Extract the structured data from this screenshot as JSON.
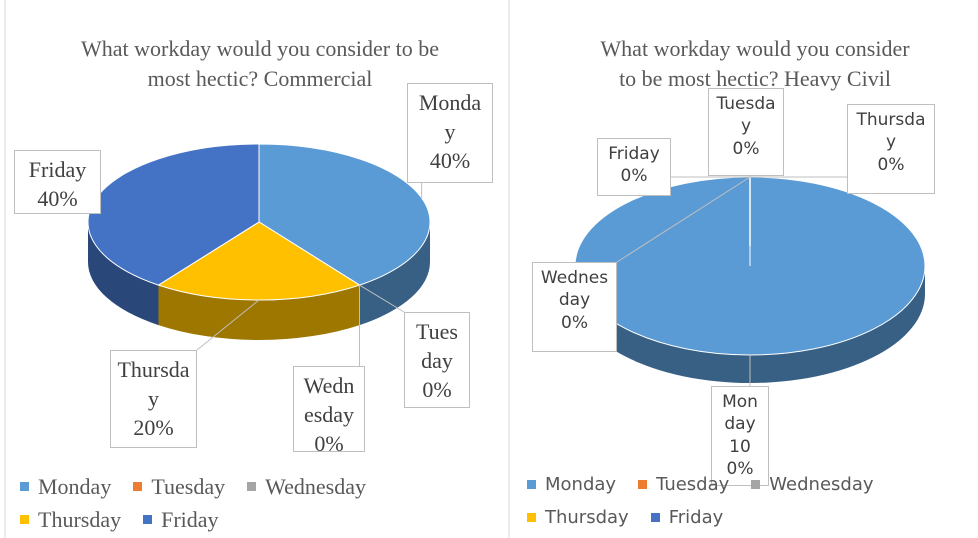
{
  "chart_data": [
    {
      "type": "pie",
      "title": "What workday would you consider to be most hectic? Commercial",
      "categories": [
        "Monday",
        "Tuesday",
        "Wednesday",
        "Thursday",
        "Friday"
      ],
      "values": [
        40,
        0,
        0,
        20,
        40
      ],
      "value_labels": [
        "40%",
        "0%",
        "0%",
        "20%",
        "40%"
      ],
      "colors": [
        "#5b9bd5",
        "#ed7d31",
        "#a5a5a5",
        "#ffc000",
        "#4472c4"
      ],
      "legend": "bottom"
    },
    {
      "type": "pie",
      "title": "What workday would you consider to be most hectic? Heavy Civil",
      "categories": [
        "Monday",
        "Tuesday",
        "Wednesday",
        "Thursday",
        "Friday"
      ],
      "values": [
        100,
        0,
        0,
        0,
        0
      ],
      "value_labels": [
        "100%",
        "0%",
        "0%",
        "0%",
        "0%"
      ],
      "colors": [
        "#5b9bd5",
        "#ed7d31",
        "#a5a5a5",
        "#ffc000",
        "#4472c4"
      ],
      "legend": "bottom"
    }
  ]
}
